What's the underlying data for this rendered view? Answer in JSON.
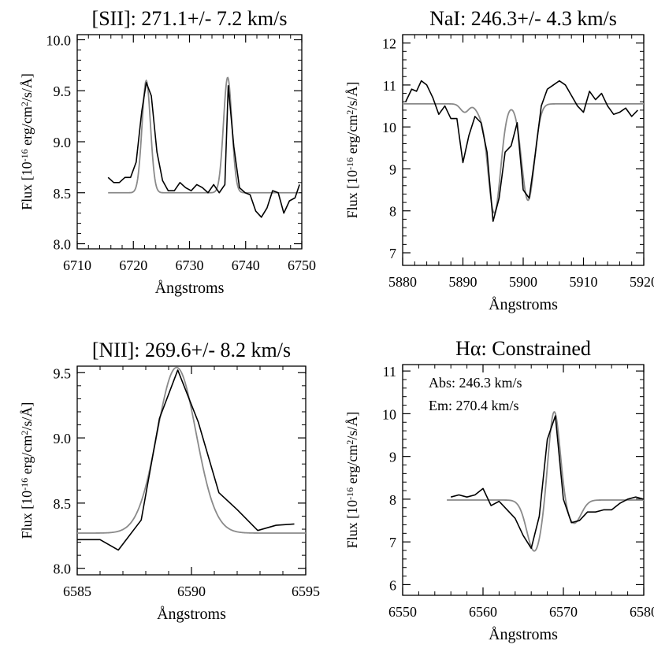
{
  "chart_data": [
    {
      "type": "line",
      "title": "[SII]: 271.1+/- 7.2 km/s",
      "xlabel": "Ångstroms",
      "ylabel": {
        "pre": "Flux [10",
        "exp": "-16",
        "mid": " erg/cm",
        "exp2": "2",
        "post": "/s/Å]"
      },
      "xlim": [
        6710,
        6750
      ],
      "ylim": [
        7.95,
        10.05
      ],
      "xticks": [
        "6710",
        "6720",
        "6730",
        "6740",
        "6750"
      ],
      "yticks": [
        "8.0",
        "8.5",
        "9.0",
        "9.5",
        "10.0"
      ],
      "series": [
        {
          "name": "data",
          "color": "#000000",
          "x": [
            6715.5,
            6716.5,
            6717.5,
            6718.5,
            6719.5,
            6720.5,
            6721.5,
            6722.3,
            6723.2,
            6724.2,
            6725.2,
            6726.2,
            6727.3,
            6728.3,
            6729.3,
            6730.3,
            6731.3,
            6732.3,
            6733.3,
            6734.3,
            6735.3,
            6736.3,
            6736.9,
            6737.9,
            6738.9,
            6739.9,
            6740.8,
            6741.8,
            6742.8,
            6743.8,
            6744.8,
            6745.8,
            6746.8,
            6747.8,
            6748.8,
            6749.6
          ],
          "y": [
            8.65,
            8.6,
            8.6,
            8.65,
            8.65,
            8.8,
            9.3,
            9.58,
            9.45,
            8.9,
            8.62,
            8.52,
            8.52,
            8.6,
            8.55,
            8.52,
            8.58,
            8.55,
            8.5,
            8.58,
            8.5,
            8.58,
            9.55,
            8.95,
            8.55,
            8.5,
            8.48,
            8.32,
            8.26,
            8.35,
            8.52,
            8.5,
            8.3,
            8.42,
            8.45,
            8.58
          ]
        },
        {
          "name": "fit",
          "color": "#8a8a8a",
          "model": {
            "baseline": 8.5,
            "width": 0.75,
            "peaks": [
              [
                6722.3,
                1.1
              ],
              [
                6736.8,
                1.13
              ]
            ]
          },
          "x_range": [
            6715.5,
            6749.5
          ]
        }
      ]
    },
    {
      "type": "line",
      "title": "NaI: 246.3+/- 4.3 km/s",
      "xlabel": "Ångstroms",
      "ylabel": {
        "pre": "Flux [10",
        "exp": "-16",
        "mid": " erg/cm",
        "exp2": "2",
        "post": "/s/Å]"
      },
      "xlim": [
        5880,
        5920
      ],
      "ylim": [
        6.7,
        12.2
      ],
      "xticks": [
        "5880",
        "5890",
        "5900",
        "5910",
        "5920"
      ],
      "yticks": [
        "7",
        "8",
        "9",
        "10",
        "11",
        "12"
      ],
      "series": [
        {
          "name": "data",
          "color": "#000000",
          "x": [
            5880.5,
            5881.5,
            5882.3,
            5883.1,
            5884,
            5885,
            5886,
            5887,
            5888,
            5889,
            5890,
            5891,
            5892,
            5893,
            5894,
            5895,
            5896,
            5897,
            5898,
            5899,
            5900,
            5901,
            5902,
            5903,
            5904,
            5905,
            5906,
            5907,
            5908,
            5909,
            5910,
            5911,
            5912,
            5913,
            5914,
            5915,
            5916,
            5917,
            5918,
            5919
          ],
          "y": [
            10.6,
            10.9,
            10.85,
            11.1,
            11.0,
            10.7,
            10.3,
            10.5,
            10.2,
            10.2,
            9.15,
            9.8,
            10.25,
            10.1,
            9.4,
            7.75,
            8.3,
            9.4,
            9.55,
            10.1,
            8.5,
            8.3,
            9.35,
            10.5,
            10.9,
            11.0,
            11.1,
            11.0,
            10.75,
            10.5,
            10.35,
            10.85,
            10.65,
            10.8,
            10.5,
            10.3,
            10.35,
            10.45,
            10.25,
            10.4
          ]
        },
        {
          "name": "fit",
          "color": "#8a8a8a",
          "model": {
            "type": "absorption",
            "baseline": 10.55,
            "dips": [
              [
                5895.2,
                2.6,
                1.05
              ],
              [
                5900.8,
                2.3,
                1.05
              ]
            ],
            "shoulders": [
              [
                5890.3,
                0.2,
                0.7
              ],
              [
                5892.7,
                0.15,
                0.7
              ]
            ]
          },
          "x_range": [
            5880,
            5920
          ]
        }
      ]
    },
    {
      "type": "line",
      "title": "[NII]: 269.6+/- 8.2 km/s",
      "xlabel": "Ångstroms",
      "ylabel": {
        "pre": "Flux [10",
        "exp": "-16",
        "mid": " erg/cm",
        "exp2": "2",
        "post": "/s/Å]"
      },
      "xlim": [
        6585,
        6595
      ],
      "ylim": [
        7.95,
        9.55
      ],
      "xticks": [
        "6585",
        "6590",
        "6595"
      ],
      "yticks": [
        "8.0",
        "8.5",
        "9.0",
        "9.5"
      ],
      "series": [
        {
          "name": "data",
          "color": "#000000",
          "x": [
            6585,
            6586,
            6586.8,
            6587.8,
            6588.6,
            6589.4,
            6590.3,
            6591.2,
            6592,
            6592.9,
            6593.7,
            6594.5
          ],
          "y": [
            8.22,
            8.22,
            8.14,
            8.37,
            9.15,
            9.52,
            9.12,
            8.58,
            8.45,
            8.29,
            8.33,
            8.34
          ]
        },
        {
          "name": "fit",
          "color": "#8a8a8a",
          "model": {
            "baseline": 8.27,
            "width": 0.85,
            "peaks": [
              [
                6589.35,
                1.27
              ]
            ]
          },
          "x_range": [
            6585,
            6595
          ]
        }
      ]
    },
    {
      "type": "line",
      "title": "Hα: Constrained",
      "xlabel": "Ångstroms",
      "ylabel": {
        "pre": "Flux [10",
        "exp": "-16",
        "mid": " erg/cm",
        "exp2": "2",
        "post": "/s/Å]"
      },
      "xlim": [
        6550,
        6580
      ],
      "ylim": [
        5.75,
        11.15
      ],
      "xticks": [
        "6550",
        "6560",
        "6570",
        "6580"
      ],
      "yticks": [
        "6",
        "7",
        "8",
        "9",
        "10",
        "11"
      ],
      "annotations": [
        "Abs: 246.3 km/s",
        "Em: 270.4 km/s"
      ],
      "series": [
        {
          "name": "data",
          "color": "#000000",
          "x": [
            6556,
            6557,
            6558,
            6559,
            6560,
            6561,
            6562,
            6563,
            6564,
            6565,
            6566,
            6567,
            6568,
            6569,
            6570,
            6571,
            6572,
            6573,
            6574,
            6575,
            6576,
            6577,
            6578,
            6579,
            6580
          ],
          "y": [
            8.05,
            8.1,
            8.05,
            8.1,
            8.25,
            7.85,
            7.95,
            7.75,
            7.55,
            7.15,
            6.85,
            7.6,
            9.4,
            9.95,
            8.0,
            7.45,
            7.5,
            7.7,
            7.7,
            7.75,
            7.75,
            7.9,
            8.0,
            8.05,
            8.0
          ]
        },
        {
          "name": "fit",
          "color": "#8a8a8a",
          "model": {
            "baseline": 7.98,
            "emission": [
              6568.85,
              2.12,
              0.72
            ],
            "absorption": [
              6566.4,
              1.2,
              0.95
            ],
            "absorption2": [
              6571.3,
              0.55,
              0.9
            ]
          },
          "x_range": [
            6555.5,
            6580
          ]
        }
      ]
    }
  ]
}
